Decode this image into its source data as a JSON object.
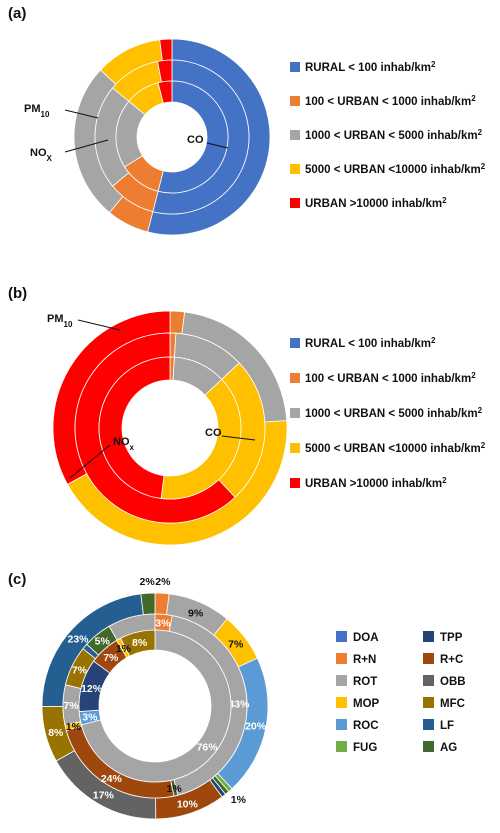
{
  "chart_data": [
    {
      "panel": "(a)",
      "type": "pie",
      "rings": [
        {
          "name": "PM10",
          "values": [
            54,
            7,
            26,
            11,
            2
          ]
        },
        {
          "name": "NOx",
          "values": [
            54,
            10,
            22,
            11,
            3
          ]
        },
        {
          "name": "CO",
          "values": [
            54,
            12,
            20,
            10,
            4
          ]
        }
      ],
      "annotations": [
        {
          "text": "PM",
          "sub": "10"
        },
        {
          "text": "NO",
          "sub": "X"
        },
        {
          "text": "CO",
          "sub": ""
        }
      ],
      "legend": [
        {
          "label": "RURAL < 100 inhab/km",
          "sup": "2",
          "color": "#4472C4"
        },
        {
          "label": "100 < URBAN < 1000 inhab/km",
          "sup": "2",
          "color": "#ED7D31"
        },
        {
          "label": "1000 < URBAN < 5000 inhab/km",
          "sup": "2",
          "color": "#A5A5A5"
        },
        {
          "label": "5000 < URBAN <10000 inhab/km",
          "sup": "2",
          "color": "#FFC000"
        },
        {
          "label": "URBAN >10000 inhab/km",
          "sup": "2",
          "color": "#FF0000"
        }
      ]
    },
    {
      "panel": "(b)",
      "type": "pie",
      "rings": [
        {
          "name": "PM10",
          "values": [
            0,
            2,
            22,
            43,
            33
          ]
        },
        {
          "name": "NOx",
          "values": [
            0,
            1,
            12,
            25,
            62
          ]
        },
        {
          "name": "CO",
          "values": [
            0,
            1,
            12,
            39,
            48
          ]
        }
      ],
      "annotations": [
        {
          "text": "PM",
          "sub": "10"
        },
        {
          "text": "NO",
          "sub": "x"
        },
        {
          "text": "CO",
          "sub": ""
        }
      ],
      "legend": [
        {
          "label": "RURAL < 100 inhab/km",
          "sup": "2",
          "color": "#4472C4"
        },
        {
          "label": "100 < URBAN < 1000 inhab/km",
          "sup": "2",
          "color": "#ED7D31"
        },
        {
          "label": "1000 < URBAN < 5000 inhab/km",
          "sup": "2",
          "color": "#A5A5A5"
        },
        {
          "label": "5000 < URBAN <10000 inhab/km",
          "sup": "2",
          "color": "#FFC000"
        },
        {
          "label": "URBAN >10000 inhab/km",
          "sup": "2",
          "color": "#FF0000"
        }
      ]
    },
    {
      "panel": "(c)",
      "type": "pie",
      "categories": [
        "R+N",
        "ROT",
        "MOP",
        "DOA",
        "FUG",
        "AG",
        "TPP",
        "R+C",
        "OBB",
        "MFC",
        "LF"
      ],
      "colors": {
        "DOA": "#4472C4",
        "R+N": "#ED7D31",
        "ROT": "#A5A5A5",
        "MOP": "#FFC000",
        "ROC": "#5B9BD5",
        "FUG": "#70AD47",
        "TPP": "#264478",
        "R+C": "#9E480E",
        "OBB": "#636363",
        "MFC": "#997300",
        "LF": "#255E91",
        "AG": "#43682B"
      },
      "rings": [
        {
          "name": "outer",
          "segments": [
            {
              "cat": "R+N",
              "value": 2,
              "label": "2%"
            },
            {
              "cat": "ROT",
              "value": 9,
              "label": "9%"
            },
            {
              "cat": "MOP",
              "value": 7,
              "label": "7%"
            },
            {
              "cat": "ROC",
              "value": 20,
              "label": "20%"
            },
            {
              "cat": "FUG",
              "value": 0.6,
              "label": "1%"
            },
            {
              "cat": "AG",
              "value": 0.6,
              "label": ""
            },
            {
              "cat": "TPP",
              "value": 0.6,
              "label": ""
            },
            {
              "cat": "R+C",
              "value": 10,
              "label": "10%"
            },
            {
              "cat": "OBB",
              "value": 17,
              "label": "17%"
            },
            {
              "cat": "MFC",
              "value": 8,
              "label": "8%"
            },
            {
              "cat": "LF",
              "value": 23,
              "label": "23%"
            },
            {
              "cat": "AG",
              "value": 2,
              "label": "2%"
            }
          ]
        },
        {
          "name": "middle",
          "segments": [
            {
              "cat": "R+N",
              "value": 3,
              "label": "3%"
            },
            {
              "cat": "ROT",
              "value": 43,
              "label": "43%"
            },
            {
              "cat": "AG",
              "value": 0.7,
              "label": "1%"
            },
            {
              "cat": "R+C",
              "value": 24,
              "label": "24%"
            },
            {
              "cat": "MOP",
              "value": 1,
              "label": "1%"
            },
            {
              "cat": "ROT",
              "value": 7,
              "label": "7%"
            },
            {
              "cat": "MFC",
              "value": 7,
              "label": "7%"
            },
            {
              "cat": "LF",
              "value": 1,
              "label": ""
            },
            {
              "cat": "AG",
              "value": 5,
              "label": "5%"
            },
            {
              "cat": "ROT",
              "value": 8.3,
              "label": ""
            }
          ]
        },
        {
          "name": "inner",
          "segments": [
            {
              "cat": "ROT",
              "value": 76,
              "label": "76%"
            },
            {
              "cat": "ROC",
              "value": 3,
              "label": "3%"
            },
            {
              "cat": "TPP",
              "value": 12,
              "label": "12%"
            },
            {
              "cat": "R+C",
              "value": 7,
              "label": "7%"
            },
            {
              "cat": "MOP",
              "value": 1,
              "label": "1%"
            },
            {
              "cat": "MFC",
              "value": 8,
              "label": "8%"
            }
          ]
        }
      ],
      "legend": [
        {
          "cat": "DOA",
          "label": "DOA"
        },
        {
          "cat": "TPP",
          "label": "TPP"
        },
        {
          "cat": "R+N",
          "label": "R+N"
        },
        {
          "cat": "R+C",
          "label": "R+C"
        },
        {
          "cat": "ROT",
          "label": "ROT"
        },
        {
          "cat": "OBB",
          "label": "OBB"
        },
        {
          "cat": "MOP",
          "label": "MOP"
        },
        {
          "cat": "MFC",
          "label": "MFC"
        },
        {
          "cat": "ROC",
          "label": "ROC"
        },
        {
          "cat": "LF",
          "label": "LF"
        },
        {
          "cat": "FUG",
          "label": "FUG"
        },
        {
          "cat": "AG",
          "label": "AG"
        }
      ]
    }
  ]
}
